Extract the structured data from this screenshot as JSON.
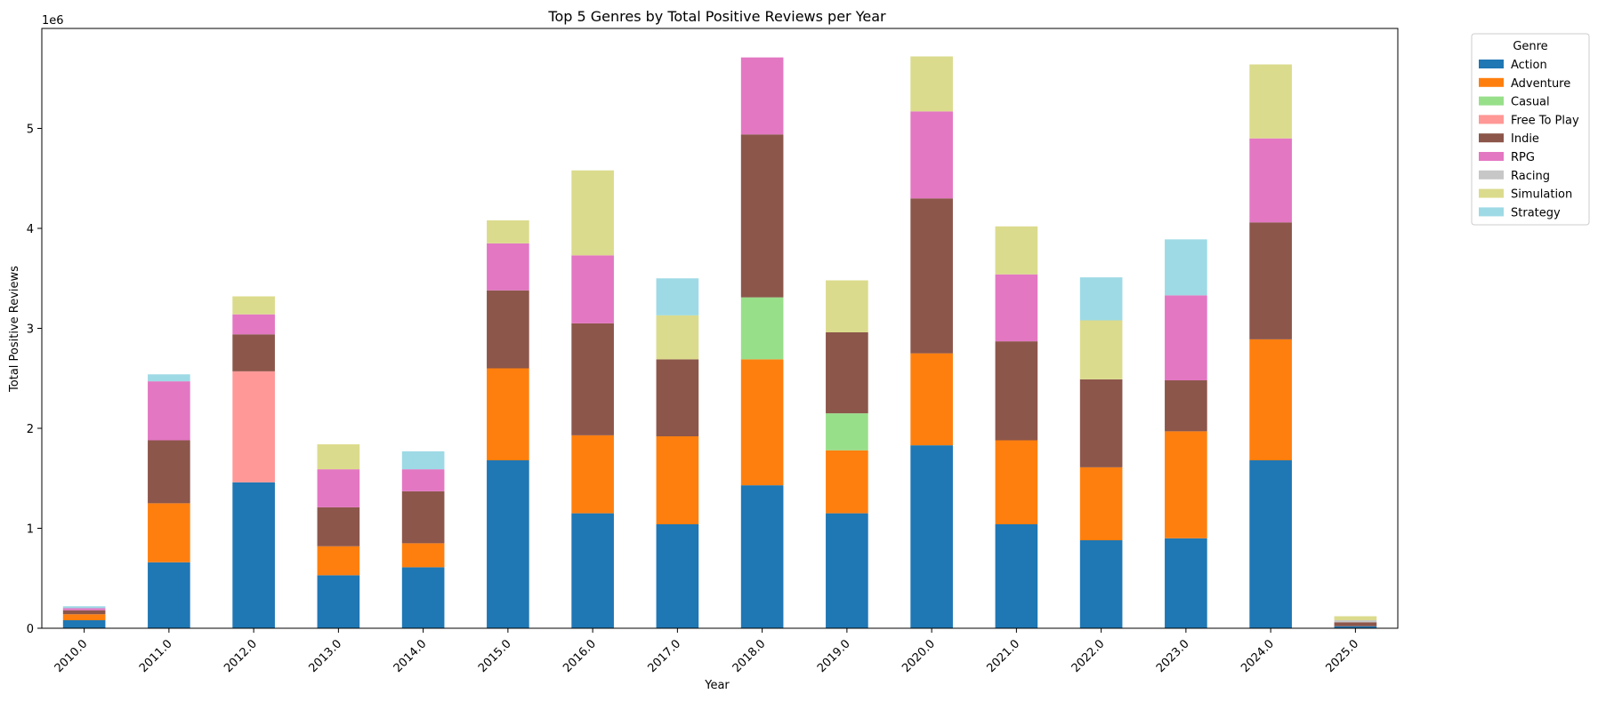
{
  "chart_data": {
    "type": "bar",
    "stacked": true,
    "title": "Top 5 Genres by Total Positive Reviews per Year",
    "xlabel": "Year",
    "ylabel": "Total Positive Reviews",
    "y_scale_label": "1e6",
    "y_scale": 1000000,
    "ylim": [
      0,
      6000000
    ],
    "yticks": [
      0,
      1,
      2,
      3,
      4,
      5
    ],
    "grid": false,
    "legend": {
      "title": "Genre",
      "placement": "outside-top-right"
    },
    "categories": [
      "2010.0",
      "2011.0",
      "2012.0",
      "2013.0",
      "2014.0",
      "2015.0",
      "2016.0",
      "2017.0",
      "2018.0",
      "2019.0",
      "2020.0",
      "2021.0",
      "2022.0",
      "2023.0",
      "2024.0",
      "2025.0"
    ],
    "series": [
      {
        "name": "Action",
        "color": "#1f77b4",
        "values": [
          80000,
          660000,
          1460000,
          530000,
          610000,
          1680000,
          1150000,
          1040000,
          1430000,
          1150000,
          1830000,
          1040000,
          880000,
          900000,
          1680000,
          20000
        ]
      },
      {
        "name": "Adventure",
        "color": "#ff7f0e",
        "values": [
          60000,
          590000,
          0,
          290000,
          240000,
          920000,
          780000,
          880000,
          1260000,
          630000,
          920000,
          840000,
          730000,
          1070000,
          1210000,
          0
        ]
      },
      {
        "name": "Casual",
        "color": "#98df8a",
        "values": [
          0,
          0,
          0,
          0,
          0,
          0,
          0,
          0,
          620000,
          370000,
          0,
          0,
          0,
          0,
          0,
          0
        ]
      },
      {
        "name": "Free To Play",
        "color": "#ff9896",
        "values": [
          0,
          0,
          1110000,
          0,
          0,
          0,
          0,
          0,
          0,
          0,
          0,
          0,
          0,
          0,
          0,
          0
        ]
      },
      {
        "name": "Indie",
        "color": "#8c564b",
        "values": [
          40000,
          630000,
          370000,
          390000,
          520000,
          780000,
          1120000,
          770000,
          1630000,
          810000,
          1550000,
          990000,
          880000,
          510000,
          1170000,
          40000
        ]
      },
      {
        "name": "RPG",
        "color": "#e377c2",
        "values": [
          20000,
          590000,
          200000,
          380000,
          220000,
          470000,
          680000,
          0,
          770000,
          0,
          870000,
          670000,
          0,
          850000,
          840000,
          0
        ]
      },
      {
        "name": "Racing",
        "color": "#c7c7c7",
        "values": [
          0,
          0,
          0,
          0,
          0,
          0,
          0,
          0,
          0,
          0,
          0,
          0,
          0,
          0,
          0,
          20000
        ]
      },
      {
        "name": "Simulation",
        "color": "#dbdb8d",
        "values": [
          0,
          0,
          180000,
          250000,
          0,
          230000,
          850000,
          440000,
          0,
          520000,
          550000,
          480000,
          590000,
          0,
          740000,
          40000
        ]
      },
      {
        "name": "Strategy",
        "color": "#9edae5",
        "values": [
          20000,
          70000,
          0,
          0,
          180000,
          0,
          0,
          370000,
          0,
          0,
          0,
          0,
          430000,
          560000,
          0,
          0
        ]
      }
    ]
  }
}
